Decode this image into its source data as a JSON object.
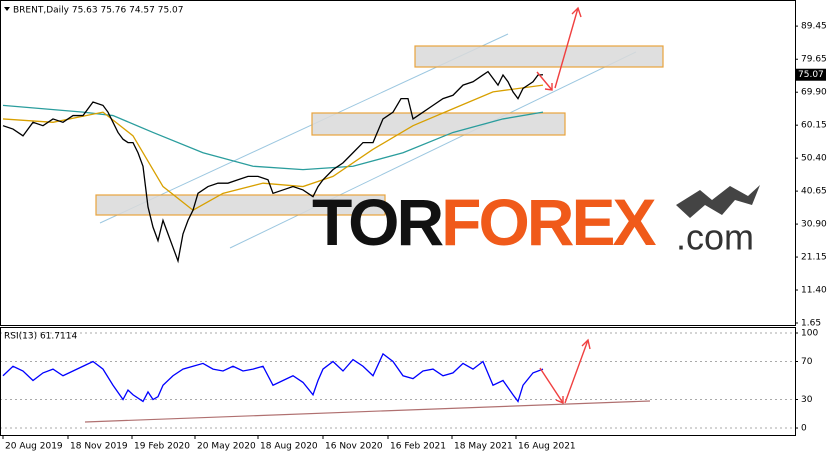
{
  "chart_data": [
    {
      "type": "line",
      "title": "BRENT,Daily 75.63 75.76 74.57 75.07",
      "xlim": [
        -3,
        792
      ],
      "ylim": [
        0.76,
        97.17
      ],
      "yticks": [
        {
          "value": 89.45,
          "label": "89.45"
        },
        {
          "value": 79.65,
          "label": "79.65"
        },
        {
          "value": 69.9,
          "label": "69.90"
        },
        {
          "value": 60.15,
          "label": "60.15"
        },
        {
          "value": 50.4,
          "label": "50.40"
        },
        {
          "value": 40.65,
          "label": "40.65"
        },
        {
          "value": 30.9,
          "label": "30.90"
        },
        {
          "value": 21.15,
          "label": "21.15"
        },
        {
          "value": 11.4,
          "label": "11.40"
        },
        {
          "value": 1.65,
          "label": "1.65"
        }
      ],
      "last_value": 75.07,
      "grid": false,
      "series": [
        {
          "color": "#2a9d9d",
          "x": [
            0,
            40,
            80,
            110,
            150,
            200,
            250,
            300,
            350,
            400,
            450,
            500,
            540
          ],
          "values": [
            66,
            65,
            64,
            63,
            58,
            52,
            48,
            47,
            48,
            52,
            58,
            62,
            64
          ]
        },
        {
          "color": "#d8a000",
          "x": [
            0,
            50,
            100,
            130,
            160,
            190,
            220,
            260,
            300,
            330,
            370,
            410,
            450,
            490,
            540
          ],
          "values": [
            62,
            61,
            64,
            57,
            42,
            35,
            40,
            43,
            42,
            45,
            53,
            60,
            65,
            70,
            72
          ]
        },
        {
          "color": "#000000",
          "x": [
            0,
            10,
            20,
            30,
            40,
            50,
            60,
            70,
            80,
            90,
            100,
            105,
            110,
            115,
            120,
            125,
            130,
            135,
            140,
            145,
            150,
            155,
            160,
            165,
            170,
            175,
            180,
            185,
            190,
            195,
            205,
            215,
            225,
            235,
            245,
            255,
            265,
            270,
            280,
            290,
            300,
            310,
            315,
            320,
            330,
            340,
            350,
            360,
            370,
            380,
            390,
            398,
            405,
            410,
            420,
            430,
            440,
            450,
            460,
            470,
            480,
            485,
            490,
            495,
            500,
            505,
            510,
            515,
            520,
            525,
            530,
            535,
            540
          ],
          "values": [
            60,
            59,
            57,
            61,
            60,
            62,
            61,
            63,
            63,
            67,
            66,
            64,
            61,
            58,
            56,
            55,
            55,
            52,
            48,
            36,
            30,
            26,
            32,
            28,
            24,
            20,
            28,
            32,
            35,
            40,
            42,
            43,
            43,
            44,
            45,
            45,
            44,
            40,
            41,
            42,
            41,
            39,
            42,
            44,
            47,
            49,
            52,
            55,
            55,
            62,
            64,
            68,
            68,
            62,
            64,
            66,
            68,
            69,
            72,
            73,
            75,
            76,
            74,
            72,
            75,
            73,
            70,
            68,
            71,
            72,
            73,
            75,
            75.07
          ]
        }
      ]
    },
    {
      "type": "line",
      "title": "RSI(13) 61.7114",
      "xlim": [
        -3,
        792
      ],
      "ylim": [
        -8.4,
        106.3
      ],
      "yticks": [
        100,
        70,
        30,
        0
      ],
      "grid": true,
      "xticks": [
        {
          "value": 0,
          "label": "20 Aug 2019"
        },
        {
          "value": 65,
          "label": "18 Nov 2019"
        },
        {
          "value": 129,
          "label": "19 Feb 2020"
        },
        {
          "value": 192,
          "label": "20 May 2020"
        },
        {
          "value": 255,
          "label": "18 Aug 2020"
        },
        {
          "value": 320,
          "label": "16 Nov 2020"
        },
        {
          "value": 385,
          "label": "16 Feb 2021"
        },
        {
          "value": 449,
          "label": "18 May 2021"
        },
        {
          "value": 513,
          "label": "16 Aug 2021"
        }
      ],
      "series": [
        {
          "color": "#0000ff",
          "x": [
            0,
            10,
            20,
            30,
            40,
            50,
            60,
            70,
            80,
            90,
            100,
            110,
            120,
            125,
            130,
            140,
            145,
            150,
            155,
            160,
            170,
            180,
            190,
            200,
            210,
            220,
            230,
            240,
            250,
            260,
            270,
            280,
            290,
            300,
            310,
            315,
            320,
            330,
            340,
            350,
            360,
            370,
            380,
            390,
            400,
            410,
            420,
            430,
            440,
            450,
            460,
            470,
            480,
            490,
            500,
            510,
            515,
            520,
            530,
            540
          ],
          "values": [
            55,
            65,
            60,
            50,
            58,
            62,
            55,
            60,
            65,
            70,
            62,
            45,
            30,
            40,
            35,
            28,
            38,
            30,
            33,
            45,
            55,
            62,
            65,
            68,
            62,
            60,
            65,
            60,
            62,
            65,
            45,
            50,
            55,
            48,
            35,
            50,
            62,
            70,
            60,
            72,
            65,
            55,
            78,
            70,
            55,
            52,
            60,
            62,
            55,
            58,
            68,
            62,
            70,
            45,
            50,
            35,
            28,
            45,
            58,
            62
          ]
        }
      ]
    }
  ],
  "watermark": {
    "brand_dark": "TOR",
    "brand_accent": "FOREX",
    "domain": ".com"
  }
}
